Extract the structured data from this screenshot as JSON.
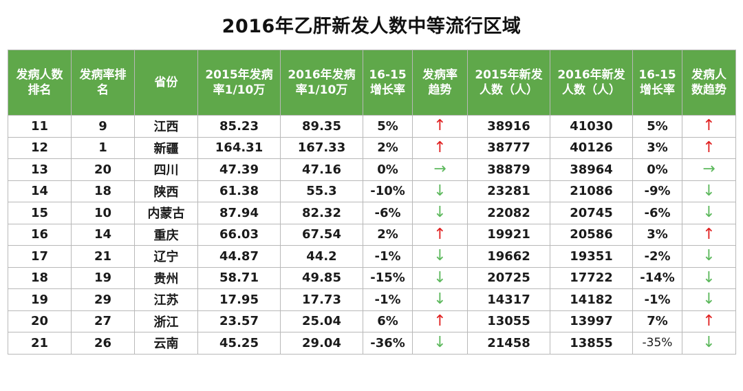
{
  "title": "2016年乙肝新发人数中等流行区域",
  "headers": [
    "发病人数\n排名",
    "发病率排\n名",
    "省份",
    "2015年发病\n率1/10万",
    "2016年发病\n率1/10万",
    "16-15\n增长率",
    "发病率\n趋势",
    "2015年新发\n人数（人）",
    "2016年新发\n人数（人）",
    "16-15\n增长率",
    "发病人\n数趋势"
  ],
  "rows": [
    {
      "rank": "11",
      "rate_rank": "9",
      "province": "江西",
      "rate2015": "85.23",
      "rate2016": "89.35",
      "rate_growth": "5%",
      "rate_trend": "up",
      "cases2015": "38916",
      "cases2016": "41030",
      "cases_growth": "5%",
      "cases_trend": "up"
    },
    {
      "rank": "12",
      "rate_rank": "1",
      "province": "新疆",
      "rate2015": "164.31",
      "rate2016": "167.33",
      "rate_growth": "2%",
      "rate_trend": "up",
      "cases2015": "38777",
      "cases2016": "40126",
      "cases_growth": "3%",
      "cases_trend": "up"
    },
    {
      "rank": "13",
      "rate_rank": "20",
      "province": "四川",
      "rate2015": "47.39",
      "rate2016": "47.16",
      "rate_growth": "0%",
      "rate_trend": "flat",
      "cases2015": "38879",
      "cases2016": "38964",
      "cases_growth": "0%",
      "cases_trend": "flat"
    },
    {
      "rank": "14",
      "rate_rank": "18",
      "province": "陕西",
      "rate2015": "61.38",
      "rate2016": "55.3",
      "rate_growth": "-10%",
      "rate_trend": "down",
      "cases2015": "23281",
      "cases2016": "21086",
      "cases_growth": "-9%",
      "cases_trend": "down"
    },
    {
      "rank": "15",
      "rate_rank": "10",
      "province": "内蒙古",
      "rate2015": "87.94",
      "rate2016": "82.32",
      "rate_growth": "-6%",
      "rate_trend": "down",
      "cases2015": "22082",
      "cases2016": "20745",
      "cases_growth": "-6%",
      "cases_trend": "down"
    },
    {
      "rank": "16",
      "rate_rank": "14",
      "province": "重庆",
      "rate2015": "66.03",
      "rate2016": "67.54",
      "rate_growth": "2%",
      "rate_trend": "up",
      "cases2015": "19921",
      "cases2016": "20586",
      "cases_growth": "3%",
      "cases_trend": "up"
    },
    {
      "rank": "17",
      "rate_rank": "21",
      "province": "辽宁",
      "rate2015": "44.87",
      "rate2016": "44.2",
      "rate_growth": "-1%",
      "rate_trend": "down",
      "cases2015": "19662",
      "cases2016": "19351",
      "cases_growth": "-2%",
      "cases_trend": "down"
    },
    {
      "rank": "18",
      "rate_rank": "19",
      "province": "贵州",
      "rate2015": "58.71",
      "rate2016": "49.85",
      "rate_growth": "-15%",
      "rate_trend": "down",
      "cases2015": "20725",
      "cases2016": "17722",
      "cases_growth": "-14%",
      "cases_trend": "down"
    },
    {
      "rank": "19",
      "rate_rank": "29",
      "province": "江苏",
      "rate2015": "17.95",
      "rate2016": "17.73",
      "rate_growth": "-1%",
      "rate_trend": "down",
      "cases2015": "14317",
      "cases2016": "14182",
      "cases_growth": "-1%",
      "cases_trend": "down"
    },
    {
      "rank": "20",
      "rate_rank": "27",
      "province": "浙江",
      "rate2015": "23.57",
      "rate2016": "25.04",
      "rate_growth": "6%",
      "rate_trend": "up",
      "cases2015": "13055",
      "cases2016": "13997",
      "cases_growth": "7%",
      "cases_trend": "up"
    },
    {
      "rank": "21",
      "rate_rank": "26",
      "province": "云南",
      "rate2015": "45.25",
      "rate2016": "29.04",
      "rate_growth": "-36%",
      "rate_trend": "down",
      "cases2015": "21458",
      "cases2016": "13855",
      "cases_growth": "-35%",
      "cases_trend": "down"
    }
  ],
  "arrow_glyphs": {
    "up": "↑",
    "down": "↓",
    "flat": "→"
  },
  "colors": {
    "header_bg": "#5fa84a",
    "arrow_up": "#e02020",
    "arrow_down": "#5cb85c"
  }
}
